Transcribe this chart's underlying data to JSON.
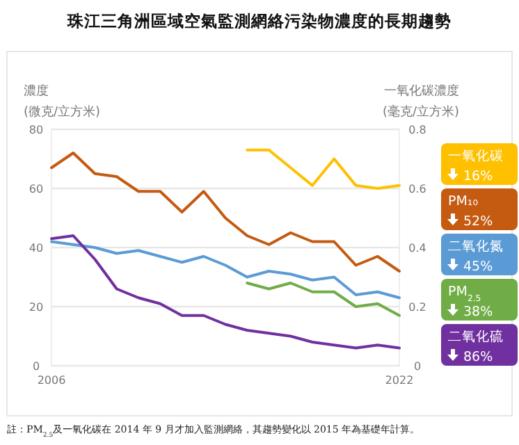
{
  "chart_data": {
    "type": "line",
    "title": "珠江三角洲區域空氣監測網絡污染物濃度的長期趨勢",
    "ylabel": "濃度\n(微克/立方米)",
    "y2label": "一氧化碳濃度\n(毫克/立方米)",
    "xlim": [
      2006,
      2022
    ],
    "xticks": [
      2006,
      2022
    ],
    "ylim": [
      0,
      80
    ],
    "yticks": [
      0,
      20,
      40,
      60,
      80
    ],
    "y2lim": [
      0,
      0.8
    ],
    "y2ticks": [
      0,
      0.2,
      0.4,
      0.6,
      0.8
    ],
    "grid": "y",
    "legend": "right",
    "marker": "none",
    "line_style": "solid",
    "series": [
      {
        "name": "一氧化碳",
        "color": "#ffc000",
        "axis": "y2",
        "x": [
          2015,
          2016,
          2017,
          2018,
          2019,
          2020,
          2021,
          2022
        ],
        "values": [
          0.73,
          0.73,
          0.67,
          0.61,
          0.7,
          0.61,
          0.6,
          0.61
        ]
      },
      {
        "name": "PM₁₀",
        "color": "#c55a11",
        "x": [
          2006,
          2007,
          2008,
          2009,
          2010,
          2011,
          2012,
          2013,
          2014,
          2015,
          2016,
          2017,
          2018,
          2019,
          2020,
          2021,
          2022
        ],
        "values": [
          67,
          72,
          65,
          64,
          59,
          59,
          52,
          59,
          50,
          44,
          41,
          45,
          42,
          42,
          34,
          37,
          32
        ]
      },
      {
        "name": "二氧化氮",
        "color": "#5b9bd5",
        "x": [
          2006,
          2007,
          2008,
          2009,
          2010,
          2011,
          2012,
          2013,
          2014,
          2015,
          2016,
          2017,
          2018,
          2019,
          2020,
          2021,
          2022
        ],
        "values": [
          42,
          41,
          40,
          38,
          39,
          37,
          35,
          37,
          34,
          30,
          32,
          31,
          29,
          30,
          24,
          25,
          23
        ]
      },
      {
        "name": "PM$_{2.5}$",
        "color": "#70ad47",
        "x": [
          2015,
          2016,
          2017,
          2018,
          2019,
          2020,
          2021,
          2022
        ],
        "values": [
          28,
          26,
          28,
          25,
          25,
          20,
          21,
          17
        ]
      },
      {
        "name": "二氧化硫",
        "color": "#7030a0",
        "x": [
          2006,
          2007,
          2008,
          2009,
          2010,
          2011,
          2012,
          2013,
          2014,
          2015,
          2016,
          2017,
          2018,
          2019,
          2020,
          2021,
          2022
        ],
        "values": [
          43,
          44,
          36,
          26,
          23,
          21,
          17,
          17,
          14,
          12,
          11,
          10,
          8,
          7,
          6,
          7,
          6
        ]
      }
    ],
    "annotations": [
      "16%",
      "52%",
      "45%",
      "38%",
      "86%",
      "註：PM$_{2.5}$及一氧化碳在 2014 年 9 月才加入監測網絡，其趨勢變化以 2015 年為基礎年計算。"
    ]
  }
}
